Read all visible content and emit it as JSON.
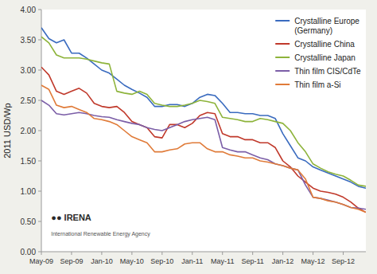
{
  "chart_data": {
    "type": "line",
    "ylabel": "2011 USD/Wp",
    "categories": [
      "May-09",
      null,
      null,
      null,
      "Sep-09",
      null,
      null,
      null,
      "Jan-10",
      null,
      null,
      null,
      "May-10",
      null,
      null,
      null,
      "Sep-10",
      null,
      null,
      null,
      "Jan-11",
      null,
      null,
      null,
      "May-11",
      null,
      null,
      null,
      "Sep-11",
      null,
      null,
      null,
      "Jan-12",
      null,
      null,
      null,
      "May-12",
      null,
      null,
      null,
      "Sep-12",
      null,
      null,
      null
    ],
    "ylim": [
      0.0,
      4.0
    ],
    "yticks": [
      {
        "value": 0.0,
        "label": "0.00"
      },
      {
        "value": 0.5,
        "label": "0.50"
      },
      {
        "value": 1.0,
        "label": "1.00"
      },
      {
        "value": 1.5,
        "label": "1.50"
      },
      {
        "value": 2.0,
        "label": "2.00"
      },
      {
        "value": 2.5,
        "label": "2.50"
      },
      {
        "value": 3.0,
        "label": "3.00"
      },
      {
        "value": 3.5,
        "label": "3.50"
      },
      {
        "value": 4.0,
        "label": "4.00"
      }
    ],
    "grid": false,
    "legend": "upper right",
    "annotations": [
      "●● IRENA",
      "International Renewable Energy Agency"
    ],
    "series": [
      {
        "name": "Crystalline Europe\n(Germany)",
        "color": "#3a6bbf",
        "values": [
          3.7,
          3.52,
          3.45,
          3.5,
          3.28,
          3.28,
          3.2,
          3.1,
          3.0,
          2.95,
          2.85,
          2.75,
          2.68,
          2.62,
          2.55,
          2.4,
          2.4,
          2.43,
          2.43,
          2.4,
          2.45,
          2.55,
          2.6,
          2.58,
          2.45,
          2.3,
          2.3,
          2.28,
          2.28,
          2.25,
          2.25,
          2.2,
          1.95,
          1.75,
          1.55,
          1.5,
          1.4,
          1.35,
          1.3,
          1.25,
          1.2,
          1.15,
          1.08,
          1.05
        ]
      },
      {
        "name": "Crystalline China",
        "color": "#c0392b",
        "values": [
          3.05,
          2.92,
          2.65,
          2.6,
          2.65,
          2.7,
          2.62,
          2.45,
          2.4,
          2.38,
          2.4,
          2.3,
          2.15,
          2.1,
          2.05,
          1.9,
          1.88,
          2.1,
          2.1,
          2.05,
          2.12,
          2.25,
          2.3,
          2.28,
          1.95,
          1.9,
          1.9,
          1.85,
          1.85,
          1.8,
          1.8,
          1.72,
          1.5,
          1.4,
          1.25,
          1.15,
          1.05,
          1.0,
          0.98,
          0.95,
          0.9,
          0.82,
          0.72,
          0.65
        ]
      },
      {
        "name": "Crystalline Japan",
        "color": "#8db33a",
        "values": [
          3.55,
          3.45,
          3.25,
          3.2,
          3.2,
          3.2,
          3.18,
          3.15,
          3.12,
          3.1,
          2.65,
          2.62,
          2.6,
          2.65,
          2.6,
          2.45,
          2.42,
          2.4,
          2.4,
          2.42,
          2.45,
          2.5,
          2.48,
          2.45,
          2.22,
          2.2,
          2.18,
          2.15,
          2.15,
          2.2,
          2.18,
          2.15,
          2.12,
          2.0,
          1.8,
          1.65,
          1.45,
          1.38,
          1.32,
          1.28,
          1.25,
          1.18,
          1.1,
          1.08
        ]
      },
      {
        "name": "Thin film CIS/CdTe",
        "color": "#7b5ea7",
        "values": [
          2.5,
          2.42,
          2.28,
          2.26,
          2.28,
          2.3,
          2.28,
          2.25,
          2.23,
          2.22,
          2.18,
          2.15,
          2.12,
          2.1,
          2.05,
          2.02,
          2.0,
          2.05,
          2.1,
          2.15,
          2.18,
          2.2,
          2.22,
          2.18,
          1.72,
          1.68,
          1.65,
          1.65,
          1.6,
          1.55,
          1.52,
          1.45,
          1.42,
          1.38,
          1.35,
          1.1,
          0.9,
          0.88,
          0.85,
          0.82,
          0.78,
          0.73,
          0.72,
          0.7
        ]
      },
      {
        "name": "Thin film a-Si",
        "color": "#e07b39",
        "values": [
          2.75,
          2.68,
          2.42,
          2.38,
          2.4,
          2.35,
          2.3,
          2.2,
          2.18,
          2.15,
          2.1,
          2.0,
          1.9,
          1.85,
          1.8,
          1.65,
          1.65,
          1.68,
          1.7,
          1.78,
          1.8,
          1.8,
          1.7,
          1.65,
          1.65,
          1.6,
          1.58,
          1.55,
          1.55,
          1.5,
          1.48,
          1.45,
          1.42,
          1.38,
          1.35,
          1.2,
          0.9,
          0.88,
          0.84,
          0.82,
          0.78,
          0.73,
          0.7,
          0.65
        ]
      }
    ]
  }
}
